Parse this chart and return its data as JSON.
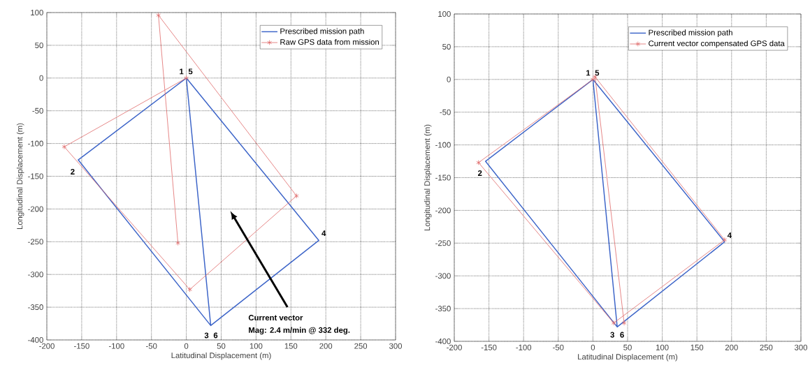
{
  "chart_data": [
    {
      "type": "line",
      "xlabel": "Latitudinal Displacement (m)",
      "ylabel": "Longitudinal Displacement (m)",
      "xlim": [
        -200,
        300
      ],
      "ylim": [
        -400,
        100
      ],
      "xticks": [
        -200,
        -150,
        -100,
        -50,
        0,
        50,
        100,
        150,
        200,
        250,
        300
      ],
      "yticks": [
        -400,
        -350,
        -300,
        -250,
        -200,
        -150,
        -100,
        -50,
        0,
        50,
        100
      ],
      "grid": true,
      "legend": "top right",
      "series": [
        {
          "name": "Prescribed mission path",
          "color": "#3c64c8",
          "marker": "none",
          "x": [
            0,
            -155,
            35,
            190,
            0,
            35
          ],
          "values": [
            0,
            -125,
            -378,
            -248,
            0,
            -378
          ]
        },
        {
          "name": "Raw GPS data from mission",
          "color": "#e06a6a",
          "marker": "cross",
          "x": [
            0,
            -175,
            5,
            158,
            -40,
            -12
          ],
          "values": [
            0,
            -105,
            -323,
            -180,
            96,
            -252
          ]
        }
      ],
      "annotations": [
        "1",
        "5",
        "2",
        "3",
        "6",
        "4",
        "Current vector",
        "Mag: 2.4 m/min @ 332 deg."
      ]
    },
    {
      "type": "line",
      "xlabel": "Latitudinal Displacement (m)",
      "ylabel": "Longitudinal Displacement (m)",
      "xlim": [
        -200,
        300
      ],
      "ylim": [
        -400,
        100
      ],
      "xticks": [
        -200,
        -150,
        -100,
        -50,
        0,
        50,
        100,
        150,
        200,
        250,
        300
      ],
      "yticks": [
        -400,
        -350,
        -300,
        -250,
        -200,
        -150,
        -100,
        -50,
        0,
        50,
        100
      ],
      "grid": true,
      "legend": "top right",
      "series": [
        {
          "name": "Prescribed mission path",
          "color": "#3c64c8",
          "marker": "none",
          "x": [
            0,
            -155,
            35,
            190,
            0,
            35
          ],
          "values": [
            0,
            -125,
            -378,
            -248,
            0,
            -378
          ]
        },
        {
          "name": "Current vector compensated GPS data",
          "color": "#e06a6a",
          "marker": "cross",
          "x": [
            0,
            -165,
            30,
            190,
            3,
            45
          ],
          "values": [
            0,
            -127,
            -372,
            -245,
            4,
            -372
          ]
        }
      ],
      "annotations": [
        "1",
        "5",
        "2",
        "3",
        "6",
        "4"
      ]
    }
  ]
}
